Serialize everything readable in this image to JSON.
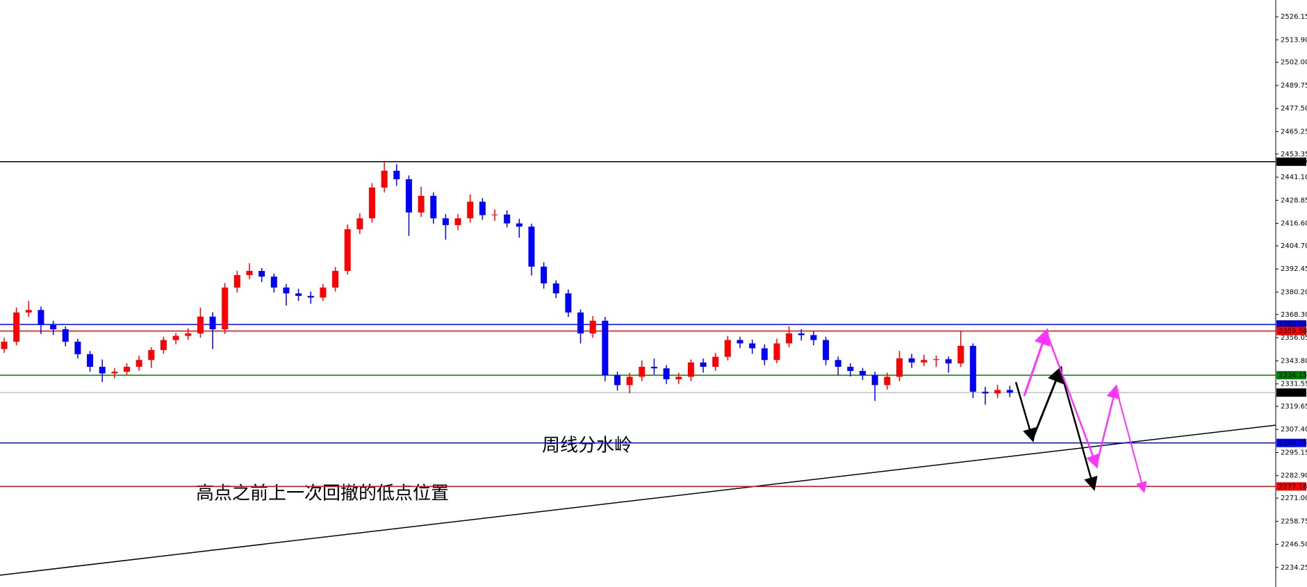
{
  "chart_data": {
    "type": "candlestick",
    "up_color": "#ff0000",
    "down_color": "#0000ff",
    "ylim": [
      2223.9,
      2535.0
    ],
    "yticks": [
      2526.15,
      {
        "value": 2513.9,
        "label": "2513.90"
      },
      {
        "value": 2502,
        "label": "2502.00"
      },
      2489.75,
      {
        "value": 2477.5,
        "label": "2477.50"
      },
      2465.25,
      2453.35,
      {
        "value": 2441.1,
        "label": "2441.10"
      },
      2428.85,
      {
        "value": 2416.6,
        "label": "2416.60"
      },
      {
        "value": 2404.7,
        "label": "2404.70"
      },
      2392.45,
      {
        "value": 2380.2,
        "label": "2380.20"
      },
      {
        "value": 2368.3,
        "label": "2368.30"
      },
      2356.05,
      {
        "value": 2343.8,
        "label": "2343.80"
      },
      2331.55,
      2319.65,
      {
        "value": 2307.4,
        "label": "2307.40"
      },
      2295.15,
      {
        "value": 2282.9,
        "label": "2282.90"
      },
      {
        "value": 2271,
        "label": "2271.00"
      },
      2258.75,
      {
        "value": 2246.5,
        "label": "2246.50"
      },
      2234.25
    ],
    "open": [
      2350.0,
      2353.9,
      2369.4,
      2370.7,
      2362.7,
      2360.5,
      2353.9,
      2347.3,
      2340.6,
      2337.1,
      2338.0,
      2340.6,
      2344.2,
      2349.5,
      2354.8,
      2357.0,
      2358.3,
      2367.2,
      2360.5,
      2382.6,
      2389.2,
      2391.4,
      2388.4,
      2382.6,
      2379.5,
      2378.2,
      2377.3,
      2382.6,
      2391.4,
      2413.5,
      2419.3,
      2435.6,
      2444.5,
      2440.0,
      2422.4,
      2431.2,
      2419.3,
      2415.7,
      2419.3,
      2428.1,
      2421.0,
      2421.3,
      2416.6,
      2414.9,
      2393.7,
      2384.8,
      2379.5,
      2369.4,
      2358.3,
      2365.0,
      2336.2,
      2330.9,
      2335.3,
      2340.6,
      2339.8,
      2334.0,
      2335.3,
      2342.9,
      2340.6,
      2345.9,
      2354.8,
      2353.0,
      2350.4,
      2344.2,
      2353.0,
      2358.3,
      2357.4,
      2354.8,
      2344.2,
      2340.6,
      2338.4,
      2336.2,
      2330.9,
      2335.3,
      2345.1,
      2342.9,
      2344.2,
      2344.6,
      2342.4,
      2351.7,
      2327.4,
      2326.5,
      2328.3
    ],
    "high": [
      2356.0,
      2372.0,
      2375.5,
      2372.5,
      2365.0,
      2362.0,
      2355.5,
      2349.0,
      2344.5,
      2340.0,
      2342.5,
      2346.5,
      2351.0,
      2356.5,
      2358.5,
      2361.0,
      2372.0,
      2369.5,
      2385.0,
      2391.5,
      2395.5,
      2393.0,
      2390.0,
      2384.5,
      2382.0,
      2380.5,
      2384.5,
      2393.5,
      2416.0,
      2422.0,
      2438.0,
      2449.3,
      2448.0,
      2442.0,
      2436.0,
      2433.0,
      2421.5,
      2421.5,
      2432.0,
      2430.0,
      2424.0,
      2423.5,
      2419.0,
      2416.5,
      2396.0,
      2386.5,
      2381.5,
      2371.0,
      2367.5,
      2367.0,
      2338.0,
      2337.5,
      2344.0,
      2345.0,
      2341.5,
      2337.5,
      2344.5,
      2345.0,
      2348.0,
      2357.0,
      2356.5,
      2355.0,
      2352.5,
      2355.5,
      2362.0,
      2360.5,
      2359.5,
      2356.5,
      2346.0,
      2342.5,
      2340.0,
      2338.0,
      2337.5,
      2349.0,
      2347.5,
      2347.0,
      2346.5,
      2346.0,
      2359.6,
      2353.0,
      2330.0,
      2331.0,
      2330.5
    ],
    "low": [
      2348.0,
      2352.0,
      2367.0,
      2358.0,
      2357.5,
      2351.5,
      2345.0,
      2338.0,
      2332.5,
      2334.5,
      2336.0,
      2338.5,
      2340.0,
      2347.5,
      2352.5,
      2355.0,
      2356.0,
      2350.0,
      2358.0,
      2380.0,
      2387.0,
      2385.5,
      2380.0,
      2373.0,
      2375.5,
      2374.0,
      2375.5,
      2380.5,
      2389.5,
      2411.0,
      2417.0,
      2433.0,
      2436.5,
      2410.0,
      2420.0,
      2416.5,
      2408.0,
      2413.0,
      2417.0,
      2418.5,
      2418.0,
      2414.5,
      2409.0,
      2389.0,
      2382.0,
      2377.0,
      2367.0,
      2353.0,
      2356.0,
      2333.0,
      2328.0,
      2326.5,
      2333.0,
      2336.5,
      2331.5,
      2331.5,
      2333.0,
      2337.5,
      2338.5,
      2344.0,
      2350.5,
      2347.5,
      2341.5,
      2342.5,
      2351.0,
      2354.5,
      2352.0,
      2341.5,
      2336.0,
      2335.5,
      2333.5,
      2322.5,
      2328.5,
      2333.0,
      2340.0,
      2341.0,
      2340.5,
      2337.5,
      2340.5,
      2324.0,
      2320.5,
      2324.0,
      2324.5
    ],
    "close": [
      2353.9,
      2369.4,
      2370.7,
      2362.7,
      2360.5,
      2353.9,
      2347.3,
      2340.6,
      2337.1,
      2338.0,
      2340.6,
      2344.2,
      2349.5,
      2354.8,
      2357.0,
      2358.3,
      2367.2,
      2360.5,
      2382.6,
      2389.2,
      2391.4,
      2388.4,
      2382.6,
      2379.5,
      2378.2,
      2377.3,
      2382.6,
      2391.4,
      2413.5,
      2419.3,
      2435.6,
      2444.5,
      2440.0,
      2422.4,
      2431.2,
      2419.3,
      2415.7,
      2419.3,
      2428.1,
      2421.0,
      2421.3,
      2416.6,
      2414.9,
      2393.7,
      2384.8,
      2379.5,
      2369.4,
      2358.3,
      2365.0,
      2336.2,
      2330.9,
      2335.3,
      2340.6,
      2339.8,
      2334.0,
      2335.3,
      2342.9,
      2340.6,
      2345.9,
      2354.8,
      2353.0,
      2350.4,
      2344.2,
      2353.0,
      2358.3,
      2357.4,
      2354.8,
      2344.2,
      2340.6,
      2338.4,
      2336.2,
      2330.9,
      2335.3,
      2345.1,
      2342.9,
      2344.2,
      2344.6,
      2342.4,
      2351.7,
      2327.4,
      2326.5,
      2328.3,
      2326.9
    ],
    "levels": [
      {
        "value": 2449.3,
        "label": "2449.30",
        "color": "#000000",
        "label_color": "#000000"
      },
      {
        "value": 2363.04,
        "label": "2363.04",
        "color": "#0000ff",
        "label_color": "#0000ff"
      },
      {
        "value": 2359.58,
        "label": "2359.58",
        "color": "#ff0000",
        "label_color": "#ff0000"
      },
      {
        "value": 2336.15,
        "label": "2336.15",
        "color": "#008000",
        "label_color": "#008000"
      },
      {
        "value": 2326.94,
        "label": "2326.94",
        "color": "#c0c0c0",
        "label_color": "#000000"
      },
      {
        "value": 2300.25,
        "label": "2300.25",
        "color": "#0000ff",
        "label_color": "#0000ff"
      },
      {
        "value": 2277.18,
        "label": "2277.18",
        "color": "#ff0000",
        "label_color": "#ff0000"
      }
    ],
    "annotations": [
      "周线分水岭",
      "高点之前上一次回撤的低点位置"
    ]
  }
}
